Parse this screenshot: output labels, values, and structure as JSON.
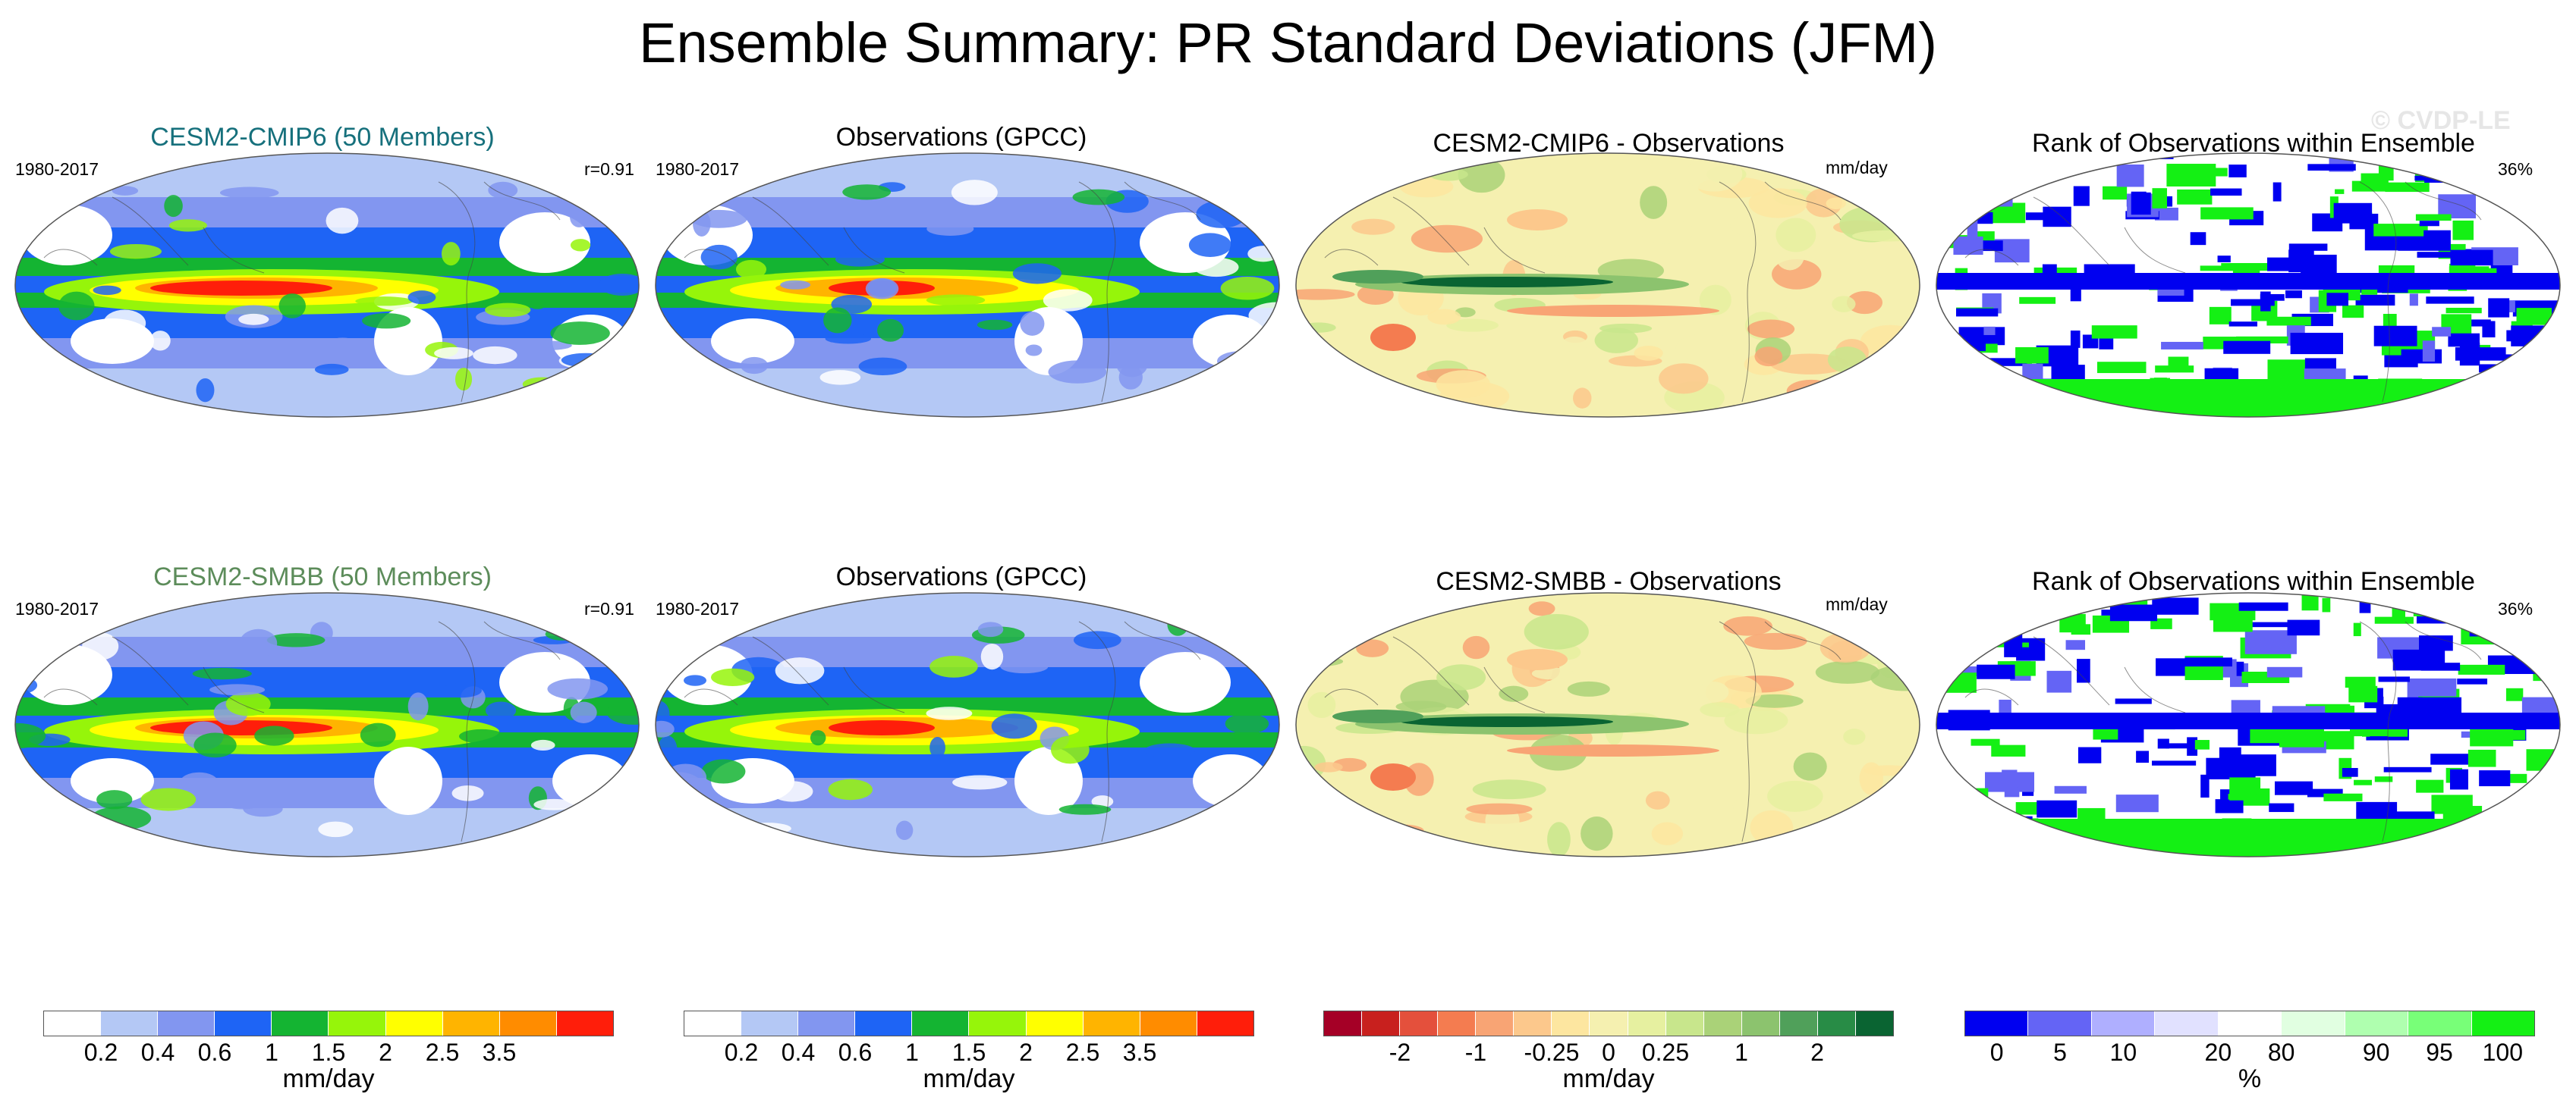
{
  "title": "Ensemble Summary: PR Standard Deviations (JFM)",
  "watermark": "© CVDP-LE",
  "colors": {
    "model_title_1": "#16707c",
    "model_title_2": "#5c8c5a",
    "pr_scale": [
      "#ffffff",
      "#b4c8f5",
      "#8296f0",
      "#1e64f5",
      "#14b432",
      "#96f50a",
      "#ffff00",
      "#ffb400",
      "#ff8c00",
      "#ff1e0a"
    ],
    "diff_scale": [
      "#a50026",
      "#c8201e",
      "#e4503c",
      "#f47c50",
      "#f8a474",
      "#fcc88c",
      "#fde6a0",
      "#f5f0b0",
      "#e6f0a0",
      "#c8e68c",
      "#aad278",
      "#8cc36e",
      "#50a05a",
      "#288c46",
      "#0a6432"
    ],
    "rank_scale": [
      "#0000f0",
      "#6464f5",
      "#afafff",
      "#e1e1ff",
      "#ffffff",
      "#e1ffe1",
      "#afffaf",
      "#78ff78",
      "#14f014"
    ]
  },
  "chart_data": [
    {
      "type": "heatmap",
      "title": "CESM2-CMIP6 (50 Members)",
      "period": "1980-2017",
      "stat": "r=0.91",
      "colorbar_labels": [
        "0.2",
        "0.4",
        "0.6",
        "1",
        "1.5",
        "2",
        "2.5",
        "3.5"
      ],
      "colorbar_unit": "mm/day"
    },
    {
      "type": "heatmap",
      "title": "Observations (GPCC)",
      "period": "1980-2017",
      "colorbar_labels": [
        "0.2",
        "0.4",
        "0.6",
        "1",
        "1.5",
        "2",
        "2.5",
        "3.5"
      ],
      "colorbar_unit": "mm/day"
    },
    {
      "type": "heatmap",
      "title": "CESM2-CMIP6 - Observations",
      "unit_label": "mm/day",
      "colorbar_labels": [
        "-2",
        "-1",
        "-0.25",
        "0",
        "0.25",
        "1",
        "2"
      ],
      "colorbar_unit": "mm/day"
    },
    {
      "type": "heatmap",
      "title": "Rank of Observations within Ensemble",
      "stat": "36%",
      "colorbar_labels": [
        "0",
        "5",
        "10",
        "20",
        "80",
        "90",
        "95",
        "100"
      ],
      "colorbar_unit": "%"
    },
    {
      "type": "heatmap",
      "title": "CESM2-SMBB (50 Members)",
      "period": "1980-2017",
      "stat": "r=0.91"
    },
    {
      "type": "heatmap",
      "title": "Observations (GPCC)",
      "period": "1980-2017"
    },
    {
      "type": "heatmap",
      "title": "CESM2-SMBB - Observations",
      "unit_label": "mm/day"
    },
    {
      "type": "heatmap",
      "title": "Rank of Observations within Ensemble",
      "stat": "36%"
    }
  ]
}
